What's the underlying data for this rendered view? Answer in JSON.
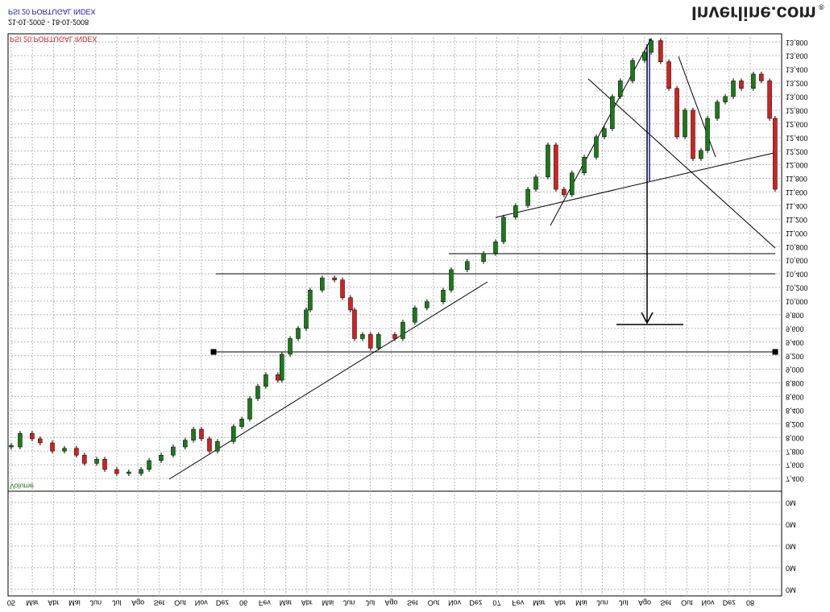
{
  "chart_data": {
    "type": "candlestick",
    "title": "PSI 20 PORTUGAL INDEX",
    "subtitle": "21-01-2005 - 18-01-2008",
    "footer_title": "PSI 20 PORTUGAL INDEX",
    "volume_label": "Volume",
    "volume_axis_labels": [
      "0M",
      "0M",
      "0M",
      "0M",
      "0M"
    ],
    "brand": "Inverline.com",
    "brand_mark": "®",
    "categories": [
      "05",
      "Mar",
      "Abr",
      "Mai",
      "Jun",
      "Jul",
      "Ago",
      "Set",
      "Out",
      "Nov",
      "Dez",
      "06",
      "Fev",
      "Mar",
      "Abr",
      "Mai",
      "Jun",
      "Jul",
      "Ago",
      "Set",
      "Out",
      "Nov",
      "Dez",
      "07",
      "Fev",
      "Mar",
      "Abr",
      "Mai",
      "Jun",
      "Jul",
      "Ago",
      "Set",
      "Out",
      "Nov",
      "Dez",
      "08"
    ],
    "xlim": [
      -0.15,
      36.49
    ],
    "ylim": [
      7240,
      13920
    ],
    "yticks": [
      {
        "value": 7400,
        "label": "7,400"
      },
      {
        "value": 7600,
        "label": "7,600"
      },
      {
        "value": 7800,
        "label": "7,800"
      },
      {
        "value": 8000,
        "label": "8,000"
      },
      {
        "value": 8200,
        "label": "8,200"
      },
      {
        "value": 8400,
        "label": "8,400"
      },
      {
        "value": 8600,
        "label": "8,600"
      },
      {
        "value": 8800,
        "label": "8,800"
      },
      {
        "value": 9000,
        "label": "9,000"
      },
      {
        "value": 9200,
        "label": "9,200"
      },
      {
        "value": 9400,
        "label": "9,400"
      },
      {
        "value": 9600,
        "label": "9,600"
      },
      {
        "value": 9800,
        "label": "9,800"
      },
      {
        "value": 10000,
        "label": "10,000"
      },
      {
        "value": 10200,
        "label": "10,200"
      },
      {
        "value": 10400,
        "label": "10,400"
      },
      {
        "value": 10600,
        "label": "10,600"
      },
      {
        "value": 10800,
        "label": "10,800"
      },
      {
        "value": 11000,
        "label": "11,000"
      },
      {
        "value": 11200,
        "label": "11,200"
      },
      {
        "value": 11400,
        "label": "11,400"
      },
      {
        "value": 11600,
        "label": "11,600"
      },
      {
        "value": 11800,
        "label": "11,800"
      },
      {
        "value": 12000,
        "label": "12,000"
      },
      {
        "value": 12200,
        "label": "12,200"
      },
      {
        "value": 12400,
        "label": "12,400"
      },
      {
        "value": 12600,
        "label": "12,600"
      },
      {
        "value": 12800,
        "label": "12,800"
      },
      {
        "value": 13000,
        "label": "13,000"
      },
      {
        "value": 13200,
        "label": "13,200"
      },
      {
        "value": 13400,
        "label": "13,400"
      },
      {
        "value": 13600,
        "label": "13,600"
      },
      {
        "value": 13800,
        "label": "13,800"
      }
    ],
    "grid": true,
    "up_color": "#1a7a1a",
    "down_color": "#d42020",
    "series": [
      {
        "x": [
          0,
          0.42,
          0.99,
          1.37,
          1.95,
          2.52,
          3.09,
          3.47,
          4.05,
          4.43,
          5.0,
          5.57,
          6.15,
          6.53,
          7.1,
          7.67,
          8.24,
          8.63,
          9.01,
          9.39,
          9.77,
          10.53,
          10.92,
          11.3,
          11.68,
          12.06,
          12.63,
          12.82,
          13.21,
          13.59,
          13.97,
          14.16,
          14.73,
          15.31,
          15.69,
          16.07,
          16.26,
          16.64,
          17.02,
          17.4,
          18.17,
          18.55,
          19.12,
          19.69,
          20.46,
          20.84,
          21.6,
          22.37,
          22.94,
          23.32,
          23.89,
          24.47,
          24.85,
          25.42,
          25.8,
          26.18,
          26.56,
          27.14,
          27.71,
          28.09,
          28.47,
          28.85,
          29.43,
          30.0,
          30.31,
          30.76,
          31.15,
          31.53,
          31.91,
          32.29,
          32.67,
          32.98,
          33.44,
          33.82,
          34.2,
          34.58,
          35.15,
          35.53,
          35.92,
          36.18
        ],
        "values": [
          7860,
          8060,
          7980,
          7920,
          7800,
          7840,
          7740,
          7620,
          7680,
          7530,
          7470,
          7470,
          7530,
          7660,
          7740,
          7860,
          7960,
          8120,
          7980,
          7800,
          7940,
          8160,
          8270,
          8570,
          8750,
          8920,
          8840,
          9220,
          9450,
          9600,
          9870,
          10160,
          10340,
          10310,
          10050,
          9870,
          9450,
          9510,
          9310,
          9510,
          9450,
          9690,
          9900,
          9990,
          10160,
          10460,
          10580,
          10700,
          10870,
          11230,
          11400,
          11640,
          11820,
          12290,
          11640,
          11560,
          11880,
          12110,
          12410,
          12530,
          13000,
          13230,
          13530,
          13650,
          13820,
          13510,
          13120,
          12410,
          12800,
          12090,
          12210,
          12680,
          12920,
          13000,
          13230,
          13120,
          13330,
          13230,
          12680,
          11640
        ]
      }
    ]
  }
}
